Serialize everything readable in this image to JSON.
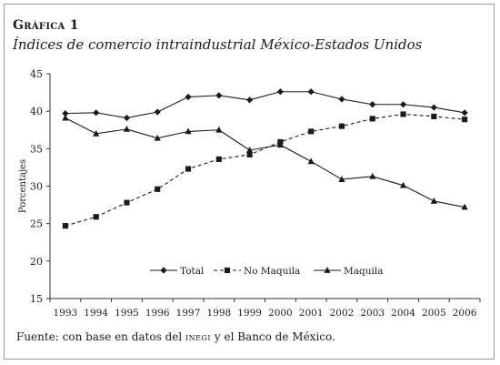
{
  "figure": {
    "label": "Gráfica 1",
    "title": "Índices de comercio intraindustrial México-Estados Unidos",
    "source_prefix": "Fuente: con base en datos del ",
    "source_org": "inegi",
    "source_suffix": " y el Banco de México."
  },
  "chart_data": {
    "type": "line",
    "title": "Índices de comercio intraindustrial México-Estados Unidos",
    "xlabel": "",
    "ylabel": "Porcentajes",
    "ylim": [
      15,
      45
    ],
    "yticks": [
      15,
      20,
      25,
      30,
      35,
      40,
      45
    ],
    "x": [
      "1993",
      "1994",
      "1995",
      "1996",
      "1997",
      "1998",
      "1999",
      "2000",
      "2001",
      "2002",
      "2003",
      "2004",
      "2005",
      "2006"
    ],
    "grid": false,
    "legend_position": "bottom-center",
    "series": [
      {
        "name": "Total",
        "marker": "diamond",
        "line": "solid",
        "color": "#1a1a1a",
        "values": [
          39.7,
          39.8,
          39.1,
          39.9,
          41.9,
          42.1,
          41.5,
          42.6,
          42.6,
          41.6,
          40.9,
          40.9,
          40.5,
          39.8
        ]
      },
      {
        "name": "No Maquila",
        "marker": "square",
        "line": "dashed",
        "color": "#1a1a1a",
        "values": [
          24.7,
          25.9,
          27.8,
          29.6,
          32.3,
          33.6,
          34.2,
          35.9,
          37.3,
          38.0,
          39.0,
          39.6,
          39.3,
          38.9
        ]
      },
      {
        "name": "Maquila",
        "marker": "triangle",
        "line": "solid",
        "color": "#1a1a1a",
        "values": [
          39.1,
          37.0,
          37.6,
          36.4,
          37.3,
          37.5,
          34.8,
          35.5,
          33.3,
          30.9,
          31.3,
          30.1,
          28.0,
          27.2
        ]
      }
    ]
  }
}
